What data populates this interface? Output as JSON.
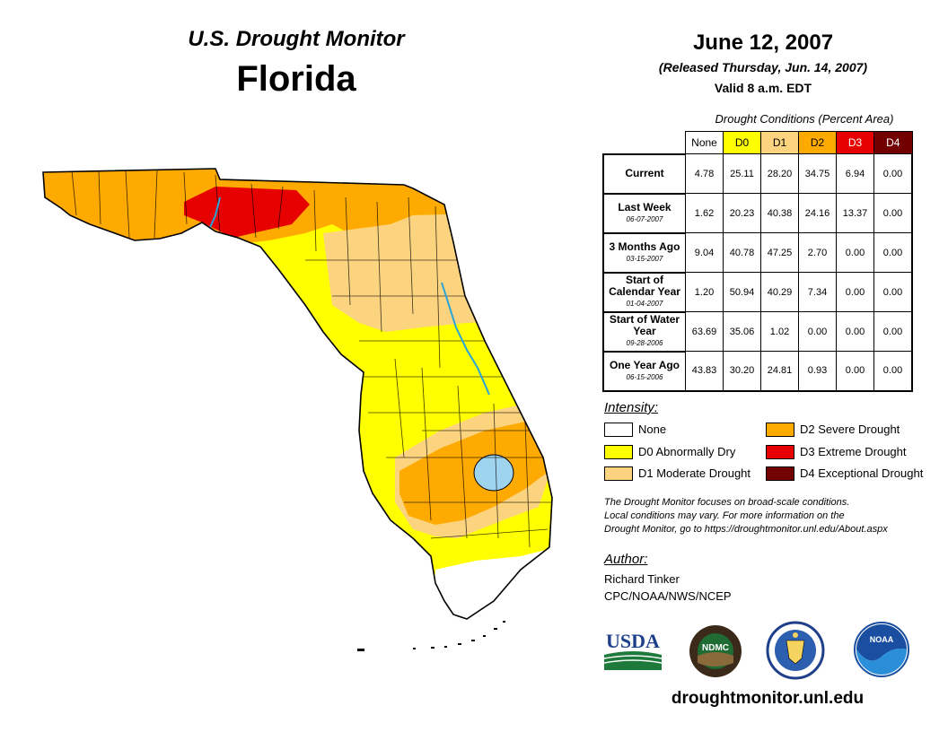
{
  "header": {
    "monitor_title": "U.S. Drought Monitor",
    "state": "Florida",
    "date": "June 12, 2007",
    "released": "(Released Thursday, Jun. 14, 2007)",
    "valid": "Valid 8 a.m. EDT"
  },
  "table": {
    "caption": "Drought Conditions (Percent Area)",
    "columns": [
      {
        "label": "None",
        "color": "#ffffff",
        "text_color": "#000000"
      },
      {
        "label": "D0",
        "color": "#ffff00",
        "text_color": "#000000"
      },
      {
        "label": "D1",
        "color": "#fcd37f",
        "text_color": "#000000"
      },
      {
        "label": "D2",
        "color": "#ffaa00",
        "text_color": "#000000"
      },
      {
        "label": "D3",
        "color": "#e60000",
        "text_color": "#ffffff"
      },
      {
        "label": "D4",
        "color": "#730000",
        "text_color": "#ffffff"
      }
    ],
    "rows": [
      {
        "label": "Current",
        "date": "",
        "values": [
          "4.78",
          "25.11",
          "28.20",
          "34.75",
          "6.94",
          "0.00"
        ]
      },
      {
        "label": "Last Week",
        "date": "06-07-2007",
        "values": [
          "1.62",
          "20.23",
          "40.38",
          "24.16",
          "13.37",
          "0.00"
        ]
      },
      {
        "label": "3 Months Ago",
        "date": "03-15-2007",
        "values": [
          "9.04",
          "40.78",
          "47.25",
          "2.70",
          "0.00",
          "0.00"
        ]
      },
      {
        "label": "Start of Calendar Year",
        "date": "01-04-2007",
        "values": [
          "1.20",
          "50.94",
          "40.29",
          "7.34",
          "0.00",
          "0.00"
        ]
      },
      {
        "label": "Start of Water Year",
        "date": "09-28-2006",
        "values": [
          "63.69",
          "35.06",
          "1.02",
          "0.00",
          "0.00",
          "0.00"
        ]
      },
      {
        "label": "One Year Ago",
        "date": "06-15-2006",
        "values": [
          "43.83",
          "30.20",
          "24.81",
          "0.93",
          "0.00",
          "0.00"
        ]
      }
    ]
  },
  "legend": {
    "title": "Intensity:",
    "items": [
      {
        "label": "None",
        "color": "#ffffff"
      },
      {
        "label": "D0 Abnormally Dry",
        "color": "#ffff00"
      },
      {
        "label": "D1 Moderate Drought",
        "color": "#fcd37f"
      },
      {
        "label": "D2 Severe Drought",
        "color": "#ffaa00"
      },
      {
        "label": "D3 Extreme Drought",
        "color": "#e60000"
      },
      {
        "label": "D4 Exceptional Drought",
        "color": "#730000"
      }
    ]
  },
  "note": {
    "line1": "The Drought Monitor focuses on broad-scale conditions.",
    "line2": "Local conditions may vary. For more information on the",
    "line3": "Drought Monitor, go to https://droughtmonitor.unl.edu/About.aspx"
  },
  "author": {
    "title": "Author:",
    "name": "Richard Tinker",
    "org": "CPC/NOAA/NWS/NCEP"
  },
  "logos": {
    "usda": "USDA",
    "ndmc": "NDMC",
    "noaa": "NOAA"
  },
  "footer": {
    "url": "droughtmonitor.unl.edu"
  },
  "map_colors": {
    "none": "#ffffff",
    "d0": "#ffff00",
    "d1": "#fcd37f",
    "d2": "#ffaa00",
    "d3": "#e60000",
    "water": "#9fd4ef",
    "river": "#2aa3d9"
  }
}
